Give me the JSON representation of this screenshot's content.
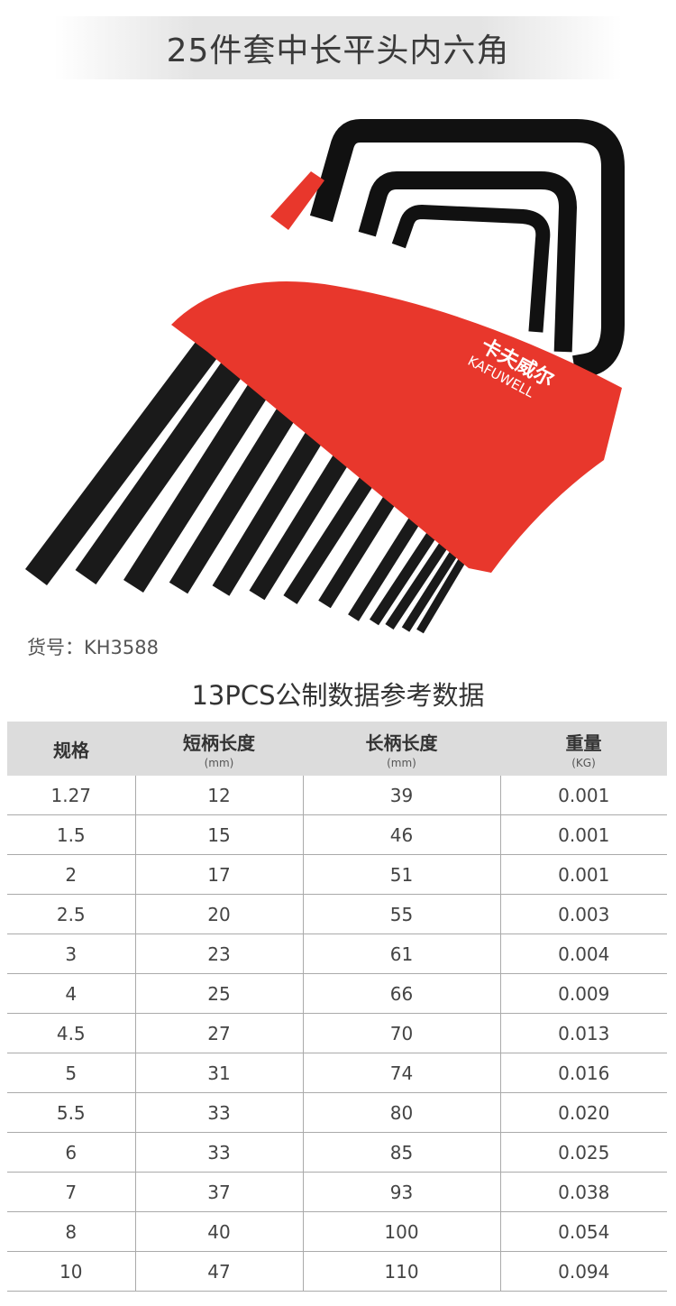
{
  "banner": {
    "title": "25件套中长平头内六角"
  },
  "product": {
    "brand_logo_cn": "卡夫威尔",
    "brand_logo_en": "KAFUWELL",
    "holder_color": "#e8372c",
    "key_color": "#111111"
  },
  "sku": {
    "label": "货号：KH3588"
  },
  "table": {
    "title": "13PCS公制数据参考数据",
    "headers": [
      {
        "label": "规格",
        "unit": ""
      },
      {
        "label": "短柄长度",
        "unit": "(mm)"
      },
      {
        "label": "长柄长度",
        "unit": "(mm)"
      },
      {
        "label": "重量",
        "unit": "(KG)"
      }
    ],
    "rows": [
      [
        "1.27",
        "12",
        "39",
        "0.001"
      ],
      [
        "1.5",
        "15",
        "46",
        "0.001"
      ],
      [
        "2",
        "17",
        "51",
        "0.001"
      ],
      [
        "2.5",
        "20",
        "55",
        "0.003"
      ],
      [
        "3",
        "23",
        "61",
        "0.004"
      ],
      [
        "4",
        "25",
        "66",
        "0.009"
      ],
      [
        "4.5",
        "27",
        "70",
        "0.013"
      ],
      [
        "5",
        "31",
        "74",
        "0.016"
      ],
      [
        "5.5",
        "33",
        "80",
        "0.020"
      ],
      [
        "6",
        "33",
        "85",
        "0.025"
      ],
      [
        "7",
        "37",
        "93",
        "0.038"
      ],
      [
        "8",
        "40",
        "100",
        "0.054"
      ],
      [
        "10",
        "47",
        "110",
        "0.094"
      ]
    ]
  }
}
